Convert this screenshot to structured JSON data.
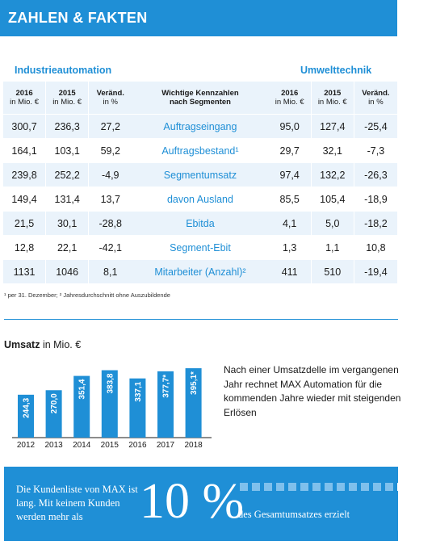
{
  "header": {
    "title": "ZAHLEN & FAKTEN"
  },
  "sections": {
    "left": "Industrieautomation",
    "right": "Umwelttechnik"
  },
  "table": {
    "headers": {
      "y2016": "2016",
      "y2016_unit": "in Mio. €",
      "y2015": "2015",
      "y2015_unit": "in Mio. €",
      "chg": "Veränd.",
      "chg_unit": "in %",
      "mid1": "Wichtige Kennzahlen",
      "mid2": "nach Segmenten"
    },
    "rows": [
      {
        "l2016": "300,7",
        "l2015": "236,3",
        "lchg": "27,2",
        "label": "Auftragseingang",
        "r2016": "95,0",
        "r2015": "127,4",
        "rchg": "-25,4"
      },
      {
        "l2016": "164,1",
        "l2015": "103,1",
        "lchg": "59,2",
        "label": "Auftragsbestand¹",
        "r2016": "29,7",
        "r2015": "32,1",
        "rchg": "-7,3"
      },
      {
        "l2016": "239,8",
        "l2015": "252,2",
        "lchg": "-4,9",
        "label": "Segmentumsatz",
        "r2016": "97,4",
        "r2015": "132,2",
        "rchg": "-26,3"
      },
      {
        "l2016": "149,4",
        "l2015": "131,4",
        "lchg": "13,7",
        "label": "davon Ausland",
        "r2016": "85,5",
        "r2015": "105,4",
        "rchg": "-18,9"
      },
      {
        "l2016": "21,5",
        "l2015": "30,1",
        "lchg": "-28,8",
        "label": "Ebitda",
        "r2016": "4,1",
        "r2015": "5,0",
        "rchg": "-18,2"
      },
      {
        "l2016": "12,8",
        "l2015": "22,1",
        "lchg": "-42,1",
        "label": "Segment-Ebit",
        "r2016": "1,3",
        "r2015": "1,1",
        "rchg": "10,8"
      },
      {
        "l2016": "1131",
        "l2015": "1046",
        "lchg": "8,1",
        "label": "Mitarbeiter (Anzahl)²",
        "r2016": "411",
        "r2015": "510",
        "rchg": "-19,4"
      }
    ],
    "footnote": "¹ per 31. Dezember; ² Jahresdurchschnitt ohne Auszubildende"
  },
  "umsatz": {
    "title_bold": "Umsatz",
    "title_rest": " in Mio. €"
  },
  "description": "Nach einer Umsatzdelle im vergangenen Jahr rechnet MAX Automation für die kommenden Jahre wieder mit steigenden Erlösen",
  "banner": {
    "left": "Die Kundenliste von MAX ist lang. Mit keinem Kunden werden mehr als",
    "big": "10 %",
    "right": "des Gesamtumsatzes erzielt"
  },
  "colors": {
    "accent": "#1f8fd6",
    "light": "#eaf3fb"
  },
  "chart_data": {
    "type": "bar",
    "categories": [
      "2012",
      "2013",
      "2014",
      "2015",
      "2016",
      "2017",
      "2018"
    ],
    "values": [
      244.3,
      270.0,
      351.4,
      383.8,
      337.1,
      377.7,
      395.1
    ],
    "value_labels": [
      "244,3",
      "270,0",
      "351,4",
      "383,8",
      "337,1",
      "377,7*",
      "395,1*"
    ],
    "title": "Umsatz",
    "ylabel": "in Mio. €",
    "color": "#1f8fd6"
  }
}
